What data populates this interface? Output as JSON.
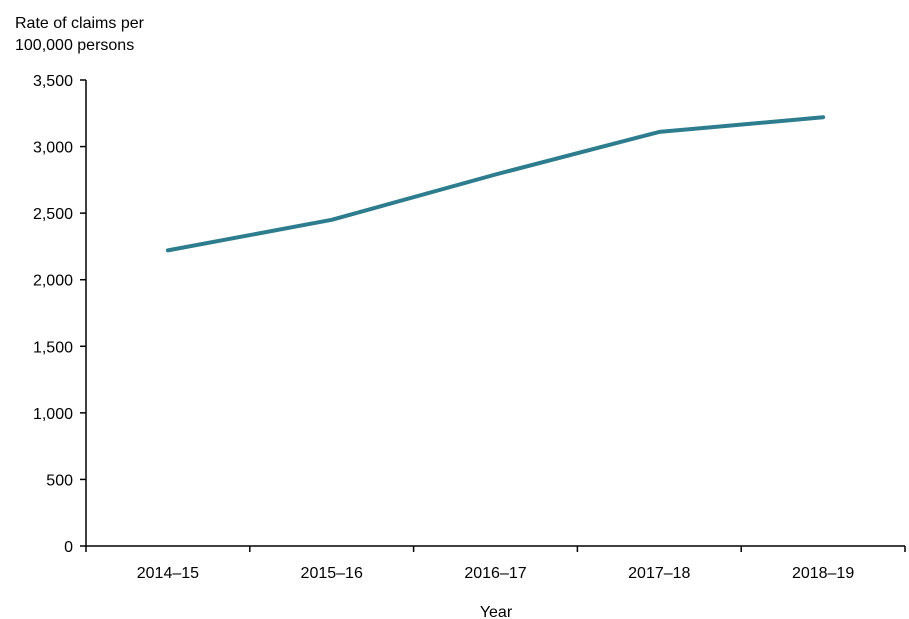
{
  "chart_data": {
    "type": "line",
    "title": "",
    "ylabel_lines": [
      "Rate of claims per",
      "100,000 persons"
    ],
    "xlabel": "Year",
    "categories": [
      "2014–15",
      "2015–16",
      "2016–17",
      "2017–18",
      "2018–19"
    ],
    "series": [
      {
        "values": [
          2220,
          2450,
          2790,
          3110,
          3220
        ],
        "color": "#2e7d8f"
      }
    ],
    "ylim": [
      0,
      3500
    ],
    "yticks": [
      0,
      500,
      1000,
      1500,
      2000,
      2500,
      3000,
      3500
    ],
    "ytick_labels": [
      "0",
      "500",
      "1,000",
      "1,500",
      "2,000",
      "2,500",
      "3,000",
      "3,500"
    ],
    "grid": false,
    "legend": "none"
  }
}
